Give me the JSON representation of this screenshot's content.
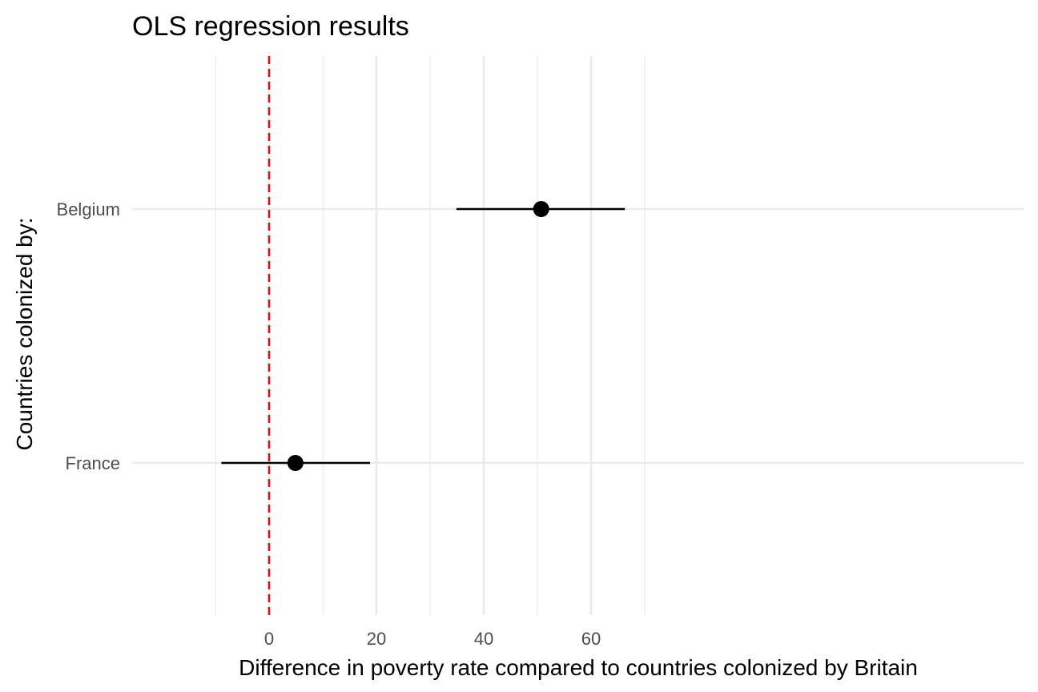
{
  "chart_data": {
    "type": "dot-errorbar",
    "title": "OLS regression results",
    "xlabel": "Difference in poverty rate compared to countries colonized by Britain",
    "ylabel": "Countries colonized by:",
    "xlim": [
      -10,
      70
    ],
    "x_ticks": [
      0,
      20,
      40,
      60
    ],
    "x_minor_ticks": [
      -10,
      10,
      30,
      50,
      70
    ],
    "categories": [
      "Belgium",
      "France"
    ],
    "estimates": [
      {
        "category": "Belgium",
        "estimate": 50.7,
        "ci_low": 34.9,
        "ci_high": 66.3
      },
      {
        "category": "France",
        "estimate": 4.9,
        "ci_low": -8.9,
        "ci_high": 18.8
      }
    ],
    "reference_line": {
      "x": 0,
      "style": "dashed",
      "color": "#ff0000"
    },
    "grid": true,
    "legend": "none",
    "colors": {
      "point": "#000000",
      "errorbar": "#000000",
      "grid": "#ebebeb",
      "reference": "#ff0000"
    }
  }
}
